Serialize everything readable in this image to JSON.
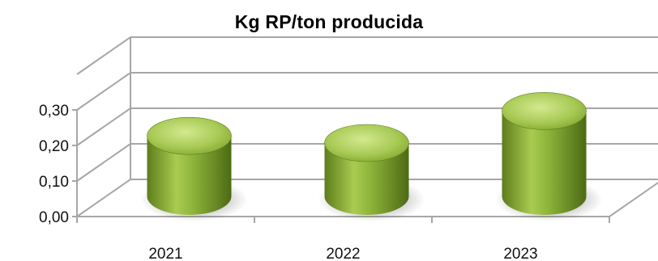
{
  "chart_data": {
    "type": "bar",
    "style": "3d-cylinder",
    "title": "Kg RP/ton producida",
    "categories": [
      "2021",
      "2022",
      "2023"
    ],
    "values": [
      0.17,
      0.15,
      0.24
    ],
    "yticks": [
      "0,00",
      "0,10",
      "0,20",
      "0,30"
    ],
    "ylim": [
      0,
      0.3
    ],
    "grid": true,
    "legend": "none",
    "colors": {
      "bar": "#8db33a",
      "bar_dark": "#5e7d1c",
      "bar_light": "#c3de78",
      "grid": "#a6a6a6"
    }
  }
}
